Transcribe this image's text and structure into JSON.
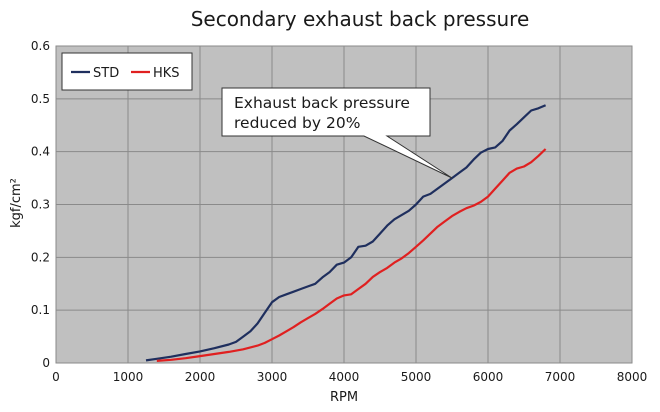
{
  "chart_data": {
    "type": "line",
    "title": "Secondary exhaust back pressure",
    "xlabel": "RPM",
    "ylabel": "kgf/cm²",
    "xlim": [
      0,
      8000
    ],
    "ylim": [
      0,
      0.6
    ],
    "x_ticks": [
      "0",
      "1000",
      "2000",
      "3000",
      "4000",
      "5000",
      "6000",
      "7000",
      "8000"
    ],
    "y_ticks": [
      "0",
      "0.1",
      "0.2",
      "0.3",
      "0.4",
      "0.5",
      "0.6"
    ],
    "grid": true,
    "legend_position": "top-left",
    "series": [
      {
        "name": "STD",
        "color": "#1f2f5e",
        "points": [
          [
            1250,
            0.005
          ],
          [
            1400,
            0.008
          ],
          [
            1600,
            0.012
          ],
          [
            1800,
            0.017
          ],
          [
            2000,
            0.022
          ],
          [
            2200,
            0.028
          ],
          [
            2400,
            0.035
          ],
          [
            2500,
            0.04
          ],
          [
            2600,
            0.05
          ],
          [
            2700,
            0.06
          ],
          [
            2800,
            0.075
          ],
          [
            2900,
            0.095
          ],
          [
            3000,
            0.115
          ],
          [
            3100,
            0.125
          ],
          [
            3200,
            0.13
          ],
          [
            3300,
            0.135
          ],
          [
            3400,
            0.14
          ],
          [
            3500,
            0.145
          ],
          [
            3600,
            0.15
          ],
          [
            3700,
            0.162
          ],
          [
            3800,
            0.172
          ],
          [
            3900,
            0.186
          ],
          [
            4000,
            0.19
          ],
          [
            4100,
            0.2
          ],
          [
            4200,
            0.22
          ],
          [
            4300,
            0.222
          ],
          [
            4400,
            0.23
          ],
          [
            4500,
            0.245
          ],
          [
            4600,
            0.26
          ],
          [
            4700,
            0.272
          ],
          [
            4800,
            0.28
          ],
          [
            4900,
            0.288
          ],
          [
            5000,
            0.3
          ],
          [
            5100,
            0.315
          ],
          [
            5200,
            0.32
          ],
          [
            5300,
            0.33
          ],
          [
            5400,
            0.34
          ],
          [
            5500,
            0.35
          ],
          [
            5600,
            0.36
          ],
          [
            5700,
            0.37
          ],
          [
            5800,
            0.385
          ],
          [
            5900,
            0.398
          ],
          [
            6000,
            0.405
          ],
          [
            6100,
            0.408
          ],
          [
            6200,
            0.42
          ],
          [
            6300,
            0.44
          ],
          [
            6400,
            0.452
          ],
          [
            6500,
            0.465
          ],
          [
            6600,
            0.478
          ],
          [
            6700,
            0.482
          ],
          [
            6800,
            0.488
          ]
        ]
      },
      {
        "name": "HKS",
        "color": "#e02020",
        "points": [
          [
            1400,
            0.004
          ],
          [
            1600,
            0.006
          ],
          [
            1800,
            0.009
          ],
          [
            2000,
            0.013
          ],
          [
            2200,
            0.017
          ],
          [
            2400,
            0.021
          ],
          [
            2600,
            0.026
          ],
          [
            2800,
            0.033
          ],
          [
            2900,
            0.038
          ],
          [
            3000,
            0.045
          ],
          [
            3100,
            0.052
          ],
          [
            3200,
            0.06
          ],
          [
            3300,
            0.068
          ],
          [
            3400,
            0.077
          ],
          [
            3500,
            0.085
          ],
          [
            3600,
            0.093
          ],
          [
            3700,
            0.102
          ],
          [
            3800,
            0.112
          ],
          [
            3900,
            0.122
          ],
          [
            4000,
            0.128
          ],
          [
            4100,
            0.13
          ],
          [
            4200,
            0.14
          ],
          [
            4300,
            0.15
          ],
          [
            4400,
            0.163
          ],
          [
            4500,
            0.172
          ],
          [
            4600,
            0.18
          ],
          [
            4700,
            0.19
          ],
          [
            4800,
            0.198
          ],
          [
            4900,
            0.208
          ],
          [
            5000,
            0.22
          ],
          [
            5100,
            0.232
          ],
          [
            5200,
            0.245
          ],
          [
            5300,
            0.258
          ],
          [
            5400,
            0.268
          ],
          [
            5500,
            0.278
          ],
          [
            5600,
            0.286
          ],
          [
            5700,
            0.293
          ],
          [
            5800,
            0.298
          ],
          [
            5900,
            0.305
          ],
          [
            6000,
            0.315
          ],
          [
            6100,
            0.33
          ],
          [
            6200,
            0.345
          ],
          [
            6300,
            0.36
          ],
          [
            6400,
            0.368
          ],
          [
            6500,
            0.372
          ],
          [
            6600,
            0.38
          ],
          [
            6700,
            0.392
          ],
          [
            6800,
            0.405
          ]
        ]
      }
    ],
    "annotation": {
      "lines": [
        "Exhaust back pressure",
        "reduced by 20%"
      ],
      "points_to": [
        5500,
        0.35
      ]
    }
  },
  "colors": {
    "plot_background": "#c0c0c0",
    "grid": "#8a8a8a"
  }
}
